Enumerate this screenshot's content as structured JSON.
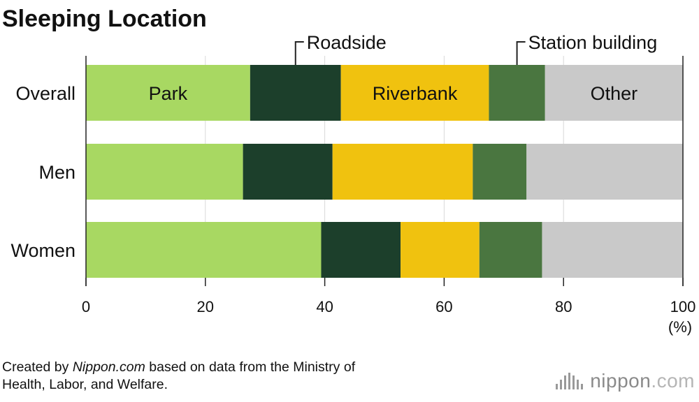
{
  "chart_data": {
    "type": "bar",
    "orientation": "horizontal",
    "stacked": true,
    "title": "Sleeping Location",
    "categories": [
      "Overall",
      "Men",
      "Women"
    ],
    "series": [
      {
        "name": "Park",
        "color": "#a8d862",
        "values": [
          27.5,
          26.3,
          39.4
        ]
      },
      {
        "name": "Roadside",
        "color": "#1c3f2b",
        "values": [
          15.2,
          15.0,
          13.3
        ]
      },
      {
        "name": "Riverbank",
        "color": "#f0c20f",
        "values": [
          24.8,
          23.5,
          13.2
        ]
      },
      {
        "name": "Station building",
        "color": "#4a7640",
        "values": [
          9.4,
          9.0,
          10.5
        ]
      },
      {
        "name": "Other",
        "color": "#c9c9c9",
        "values": [
          23.1,
          26.2,
          23.6
        ]
      }
    ],
    "xlim": [
      0,
      100
    ],
    "xticks": [
      "0",
      "20",
      "40",
      "60",
      "80",
      "100"
    ],
    "xunit": "(%)",
    "grid": true,
    "legend": "inline labels on Overall bar with callouts"
  },
  "footer": {
    "source_prefix": "Created by ",
    "source_site": "Nippon.com",
    "source_suffix": " based on data from the Ministry of",
    "source_line2": "Health, Labor, and Welfare.",
    "brand_text": "nippon",
    "brand_dot": ".com",
    "brand_icon": "nippon-bars-icon"
  }
}
